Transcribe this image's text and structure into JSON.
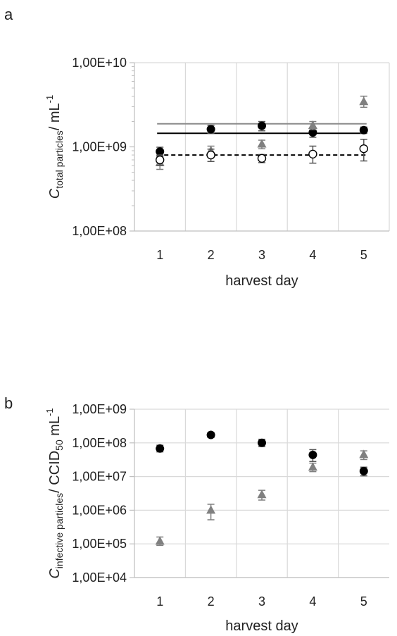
{
  "panel_labels": [
    "a",
    "b"
  ],
  "chart_data": [
    {
      "type": "scatter",
      "panel": "a",
      "xlabel": "harvest day",
      "ylabel": {
        "main": "C",
        "subscript": "total particles",
        "rest": "/ mL",
        "superscript": "-1"
      },
      "yscale": "log",
      "ylim": [
        100000000,
        10000000000
      ],
      "yticks": [
        "1,00E+08",
        "1,00E+09",
        "1,00E+10"
      ],
      "yticks_values": [
        100000000,
        1000000000,
        10000000000
      ],
      "x": [
        1,
        2,
        3,
        4,
        5
      ],
      "xlim": [
        0.5,
        5.5
      ],
      "xticks": [
        "1",
        "2",
        "3",
        "4",
        "5"
      ],
      "grid": "vertical",
      "series": [
        {
          "marker": "filled-circle",
          "color": "#000000",
          "values": [
            880000000,
            1620000000,
            1780000000,
            1480000000,
            1580000000
          ],
          "err_low": [
            780000000,
            1450000000,
            1550000000,
            1300000000,
            1450000000
          ],
          "err_high": [
            990000000,
            1800000000,
            2000000000,
            1700000000,
            1720000000
          ],
          "mean_line": 1450000000,
          "mean_line_style": "solid"
        },
        {
          "marker": "triangle",
          "color": "#808080",
          "values": [
            650000000,
            900000000,
            1080000000,
            1800000000,
            3450000000
          ],
          "err_low": [
            540000000,
            780000000,
            950000000,
            1600000000,
            2950000000
          ],
          "err_high": [
            760000000,
            1020000000,
            1200000000,
            2000000000,
            4000000000
          ],
          "mean_line": 1880000000,
          "mean_line_style": "solid"
        },
        {
          "marker": "open-circle",
          "color": "#000000",
          "values": [
            700000000,
            800000000,
            730000000,
            820000000,
            950000000
          ],
          "err_low": [
            600000000,
            670000000,
            650000000,
            640000000,
            680000000
          ],
          "err_high": [
            800000000,
            940000000,
            810000000,
            1020000000,
            1230000000
          ],
          "mean_line": 800000000,
          "mean_line_style": "dashed"
        }
      ]
    },
    {
      "type": "scatter",
      "panel": "b",
      "xlabel": "harvest day",
      "ylabel": {
        "main": "C",
        "subscript": "infective particles",
        "rest": "/ CCID",
        "subscript2": "50",
        "rest2": " mL",
        "superscript": "-1"
      },
      "yscale": "log",
      "ylim": [
        10000,
        1000000000
      ],
      "yticks": [
        "1,00E+04",
        "1,00E+05",
        "1,00E+06",
        "1,00E+07",
        "1,00E+08",
        "1,00E+09"
      ],
      "yticks_values": [
        10000,
        100000,
        1000000,
        10000000,
        100000000,
        1000000000
      ],
      "x": [
        1,
        2,
        3,
        4,
        5
      ],
      "xlim": [
        0.5,
        5.5
      ],
      "xticks": [
        "1",
        "2",
        "3",
        "4",
        "5"
      ],
      "grid": "both",
      "series": [
        {
          "marker": "filled-circle",
          "color": "#000000",
          "values": [
            68000000,
            172000000,
            100000000,
            44000000,
            14500000
          ],
          "err_low": [
            54000000,
            145000000,
            78000000,
            28000000,
            10500000
          ],
          "err_high": [
            85000000,
            200000000,
            128000000,
            63000000,
            19000000
          ]
        },
        {
          "marker": "triangle",
          "color": "#808080",
          "values": [
            120000,
            1000000,
            2900000,
            19000000,
            45000000
          ],
          "err_low": [
            90000,
            520000,
            2000000,
            14000000,
            32000000
          ],
          "err_high": [
            160000,
            1500000,
            3900000,
            25000000,
            58000000
          ]
        }
      ]
    }
  ]
}
